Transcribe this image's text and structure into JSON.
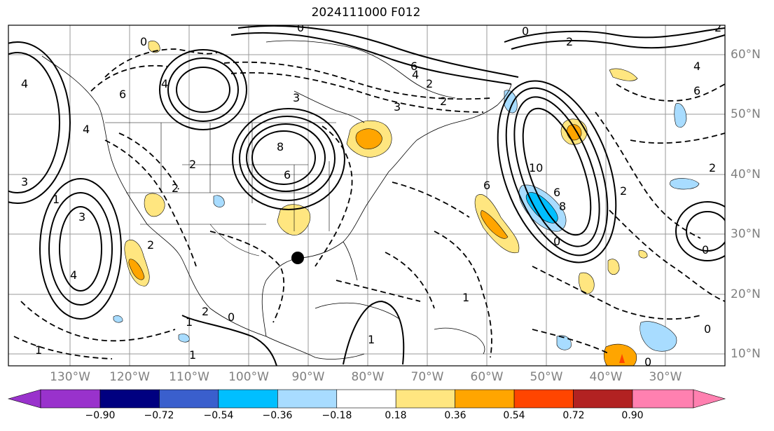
{
  "title": "2024111000 F012",
  "lon_labels": [
    "130°W",
    "120°W",
    "110°W",
    "100°W",
    "90°W",
    "80°W",
    "70°W",
    "60°W",
    "50°W",
    "40°W",
    "30°W"
  ],
  "lat_labels": [
    "60°N",
    "50°N",
    "40°N",
    "30°N",
    "20°N",
    "10°N"
  ],
  "colorbar": {
    "ticks": [
      "−0.90",
      "−0.72",
      "−0.54",
      "−0.36",
      "−0.18",
      "0.18",
      "0.36",
      "0.54",
      "0.72",
      "0.90"
    ],
    "colors": {
      "under": "#9932cc",
      "bins": [
        "#000080",
        "#3a5fcd",
        "#00bfff",
        "#a8dcff",
        "#ffffff",
        "#ffe680",
        "#ffa500",
        "#ff4500",
        "#b22222",
        "#ff80b0"
      ],
      "over": "#ff80b0"
    }
  },
  "contour_labels": [
    "0",
    "6",
    "4",
    "2",
    "0",
    "3",
    "6",
    "4",
    "3",
    "2",
    "8",
    "6",
    "6",
    "8",
    "10",
    "6",
    "2",
    "2",
    "0",
    "3",
    "4",
    "1",
    "2",
    "2",
    "1",
    "1",
    "1",
    "4",
    "3",
    "2",
    "1",
    "0",
    "0",
    "1",
    "2",
    "0",
    "4",
    "6",
    "2",
    "4",
    "2",
    "0",
    "0"
  ],
  "marker": "storm-center-dot"
}
